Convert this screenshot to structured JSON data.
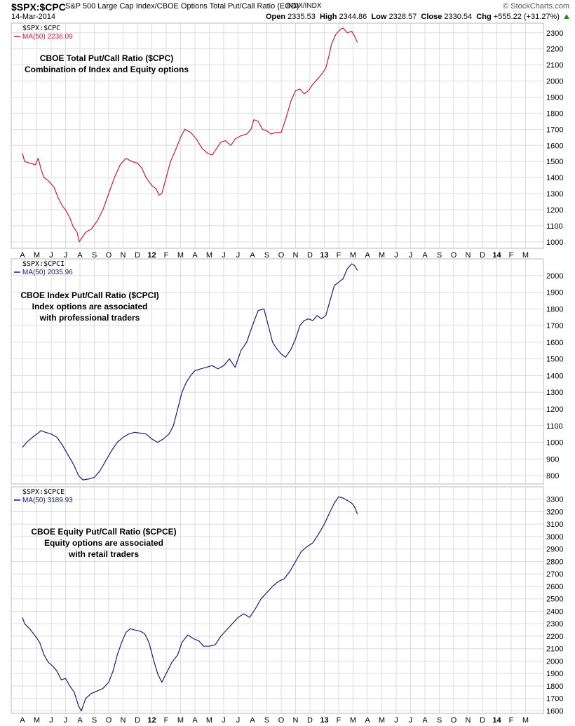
{
  "header": {
    "symbol": "$SPX:$CPC",
    "description": "S&P 500 Large Cap Index/CBOE Options Total Put/Call Ratio (EOD)",
    "exchange": "INDX/INDX",
    "brand": "© StockCharts.com",
    "date": "14-Mar-2014",
    "open_label": "Open",
    "open": "2335.53",
    "high_label": "High",
    "high": "2344.86",
    "low_label": "Low",
    "low": "2328.57",
    "close_label": "Close",
    "close": "2330.54",
    "chg_label": "Chg",
    "chg": "+555.22 (+31.27%)"
  },
  "colors": {
    "red": "#cc1a3a",
    "navy": "#1a1a80",
    "grid": "#dddddd",
    "frame": "#bbbbbb",
    "up": "#2a8a2a"
  },
  "x_axis": {
    "labels": [
      "A",
      "M",
      "J",
      "J",
      "A",
      "S",
      "O",
      "N",
      "D",
      "12",
      "F",
      "M",
      "A",
      "M",
      "J",
      "J",
      "A",
      "S",
      "O",
      "N",
      "D",
      "13",
      "F",
      "M",
      "A",
      "M",
      "J",
      "J",
      "A",
      "S",
      "O",
      "N",
      "D",
      "14",
      "F",
      "M"
    ],
    "year_labels": [
      "12",
      "13",
      "14"
    ]
  },
  "chart_data": [
    {
      "type": "line",
      "series_name": "$SPX:$CPC",
      "legend_ma": "MA(50) 2236.09",
      "color": "#cc1a3a",
      "note": [
        "CBOE Total Put/Call Ratio ($CPC)",
        "Combination of Index and Equity options"
      ],
      "ylim": [
        960,
        2360
      ],
      "yticks": [
        1000,
        1100,
        1200,
        1300,
        1400,
        1500,
        1600,
        1700,
        1800,
        1900,
        2000,
        2100,
        2200,
        2300
      ],
      "points": [
        [
          0,
          1550
        ],
        [
          0.15,
          1500
        ],
        [
          0.5,
          1490
        ],
        [
          0.9,
          1480
        ],
        [
          1.1,
          1520
        ],
        [
          1.3,
          1450
        ],
        [
          1.5,
          1400
        ],
        [
          1.8,
          1380
        ],
        [
          2.0,
          1360
        ],
        [
          2.2,
          1340
        ],
        [
          2.5,
          1270
        ],
        [
          2.8,
          1220
        ],
        [
          3.0,
          1200
        ],
        [
          3.3,
          1150
        ],
        [
          3.5,
          1100
        ],
        [
          3.8,
          1060
        ],
        [
          3.95,
          1000
        ],
        [
          4.1,
          1020
        ],
        [
          4.4,
          1060
        ],
        [
          4.8,
          1080
        ],
        [
          5.2,
          1130
        ],
        [
          5.6,
          1200
        ],
        [
          6.0,
          1300
        ],
        [
          6.4,
          1400
        ],
        [
          6.8,
          1480
        ],
        [
          7.2,
          1520
        ],
        [
          7.6,
          1500
        ],
        [
          8.0,
          1490
        ],
        [
          8.3,
          1460
        ],
        [
          8.6,
          1400
        ],
        [
          9.0,
          1350
        ],
        [
          9.3,
          1330
        ],
        [
          9.5,
          1290
        ],
        [
          9.7,
          1300
        ],
        [
          10.0,
          1400
        ],
        [
          10.3,
          1500
        ],
        [
          10.6,
          1560
        ],
        [
          11.0,
          1650
        ],
        [
          11.3,
          1700
        ],
        [
          11.7,
          1680
        ],
        [
          12.1,
          1640
        ],
        [
          12.5,
          1580
        ],
        [
          12.9,
          1550
        ],
        [
          13.2,
          1540
        ],
        [
          13.5,
          1580
        ],
        [
          13.8,
          1620
        ],
        [
          14.1,
          1630
        ],
        [
          14.5,
          1600
        ],
        [
          14.8,
          1640
        ],
        [
          15.2,
          1660
        ],
        [
          15.6,
          1670
        ],
        [
          15.9,
          1700
        ],
        [
          16.1,
          1760
        ],
        [
          16.4,
          1750
        ],
        [
          16.7,
          1700
        ],
        [
          17.0,
          1690
        ],
        [
          17.3,
          1670
        ],
        [
          17.6,
          1680
        ],
        [
          18.0,
          1680
        ],
        [
          18.3,
          1760
        ],
        [
          18.7,
          1880
        ],
        [
          19.0,
          1940
        ],
        [
          19.3,
          1950
        ],
        [
          19.6,
          1920
        ],
        [
          19.9,
          1940
        ],
        [
          20.2,
          1980
        ],
        [
          20.5,
          2010
        ],
        [
          20.8,
          2040
        ],
        [
          21.1,
          2080
        ],
        [
          21.3,
          2150
        ],
        [
          21.5,
          2230
        ],
        [
          21.8,
          2290
        ],
        [
          22.1,
          2320
        ],
        [
          22.3,
          2330
        ],
        [
          22.6,
          2300
        ],
        [
          22.9,
          2310
        ],
        [
          23.1,
          2280
        ],
        [
          23.3,
          2240
        ]
      ]
    },
    {
      "type": "line",
      "series_name": "$SPX:$CPCI",
      "legend_ma": "MA(50) 2035.96",
      "color": "#1a1a80",
      "note": [
        "CBOE Index Put/Call Ratio ($CPCI)",
        "Index options are associated",
        "with professional traders"
      ],
      "ylim": [
        750,
        2100
      ],
      "yticks": [
        800,
        900,
        1000,
        1100,
        1200,
        1300,
        1400,
        1500,
        1600,
        1700,
        1800,
        1900,
        2000
      ],
      "points": [
        [
          0,
          970
        ],
        [
          0.3,
          1000
        ],
        [
          0.7,
          1030
        ],
        [
          1.0,
          1050
        ],
        [
          1.3,
          1070
        ],
        [
          1.6,
          1060
        ],
        [
          2.0,
          1050
        ],
        [
          2.4,
          1030
        ],
        [
          2.8,
          980
        ],
        [
          3.2,
          920
        ],
        [
          3.6,
          860
        ],
        [
          3.9,
          800
        ],
        [
          4.2,
          775
        ],
        [
          4.6,
          780
        ],
        [
          5.0,
          790
        ],
        [
          5.4,
          830
        ],
        [
          5.8,
          890
        ],
        [
          6.2,
          950
        ],
        [
          6.6,
          1000
        ],
        [
          7.0,
          1030
        ],
        [
          7.4,
          1050
        ],
        [
          7.8,
          1060
        ],
        [
          8.2,
          1055
        ],
        [
          8.6,
          1050
        ],
        [
          9.0,
          1020
        ],
        [
          9.4,
          1000
        ],
        [
          9.8,
          1020
        ],
        [
          10.2,
          1050
        ],
        [
          10.5,
          1100
        ],
        [
          10.8,
          1200
        ],
        [
          11.1,
          1300
        ],
        [
          11.4,
          1360
        ],
        [
          11.7,
          1400
        ],
        [
          12.0,
          1430
        ],
        [
          12.4,
          1440
        ],
        [
          12.8,
          1450
        ],
        [
          13.2,
          1460
        ],
        [
          13.6,
          1440
        ],
        [
          14.0,
          1460
        ],
        [
          14.4,
          1500
        ],
        [
          14.8,
          1450
        ],
        [
          15.2,
          1550
        ],
        [
          15.6,
          1600
        ],
        [
          16.0,
          1700
        ],
        [
          16.4,
          1790
        ],
        [
          16.8,
          1800
        ],
        [
          17.1,
          1700
        ],
        [
          17.4,
          1600
        ],
        [
          17.7,
          1560
        ],
        [
          18.0,
          1530
        ],
        [
          18.3,
          1510
        ],
        [
          18.7,
          1560
        ],
        [
          19.0,
          1620
        ],
        [
          19.3,
          1700
        ],
        [
          19.6,
          1730
        ],
        [
          19.9,
          1740
        ],
        [
          20.2,
          1730
        ],
        [
          20.5,
          1760
        ],
        [
          20.8,
          1740
        ],
        [
          21.1,
          1760
        ],
        [
          21.4,
          1850
        ],
        [
          21.7,
          1940
        ],
        [
          22.0,
          1960
        ],
        [
          22.3,
          1980
        ],
        [
          22.6,
          2040
        ],
        [
          22.9,
          2070
        ],
        [
          23.1,
          2060
        ],
        [
          23.3,
          2030
        ]
      ]
    },
    {
      "type": "line",
      "series_name": "$SPX:$CPCE",
      "legend_ma": "MA(50) 3189.93",
      "color": "#1a1a80",
      "note": [
        "CBOE Equity Put/Call Ratio ($CPCE)",
        "Equity options are associated",
        "with retail traders"
      ],
      "ylim": [
        1580,
        3400
      ],
      "yticks": [
        1600,
        1700,
        1800,
        1900,
        2000,
        2100,
        2200,
        2300,
        2400,
        2500,
        2600,
        2700,
        2800,
        2900,
        3000,
        3100,
        3200,
        3300
      ],
      "points": [
        [
          0,
          2350
        ],
        [
          0.15,
          2300
        ],
        [
          0.5,
          2260
        ],
        [
          0.9,
          2200
        ],
        [
          1.2,
          2150
        ],
        [
          1.5,
          2050
        ],
        [
          1.8,
          1990
        ],
        [
          2.1,
          1960
        ],
        [
          2.4,
          1920
        ],
        [
          2.7,
          1850
        ],
        [
          3.0,
          1860
        ],
        [
          3.3,
          1800
        ],
        [
          3.6,
          1750
        ],
        [
          3.9,
          1640
        ],
        [
          4.1,
          1600
        ],
        [
          4.4,
          1700
        ],
        [
          4.8,
          1740
        ],
        [
          5.2,
          1760
        ],
        [
          5.6,
          1780
        ],
        [
          6.0,
          1830
        ],
        [
          6.3,
          1920
        ],
        [
          6.6,
          2050
        ],
        [
          6.9,
          2150
        ],
        [
          7.2,
          2230
        ],
        [
          7.5,
          2260
        ],
        [
          7.8,
          2250
        ],
        [
          8.2,
          2240
        ],
        [
          8.5,
          2220
        ],
        [
          8.8,
          2150
        ],
        [
          9.1,
          2020
        ],
        [
          9.4,
          1900
        ],
        [
          9.7,
          1830
        ],
        [
          10.0,
          1900
        ],
        [
          10.4,
          1990
        ],
        [
          10.8,
          2050
        ],
        [
          11.1,
          2150
        ],
        [
          11.5,
          2210
        ],
        [
          11.9,
          2180
        ],
        [
          12.3,
          2160
        ],
        [
          12.6,
          2120
        ],
        [
          13.0,
          2120
        ],
        [
          13.4,
          2130
        ],
        [
          13.8,
          2200
        ],
        [
          14.2,
          2250
        ],
        [
          14.6,
          2300
        ],
        [
          15.0,
          2350
        ],
        [
          15.4,
          2380
        ],
        [
          15.8,
          2350
        ],
        [
          16.2,
          2420
        ],
        [
          16.6,
          2500
        ],
        [
          17.0,
          2550
        ],
        [
          17.4,
          2600
        ],
        [
          17.8,
          2640
        ],
        [
          18.2,
          2660
        ],
        [
          18.6,
          2720
        ],
        [
          19.0,
          2800
        ],
        [
          19.4,
          2880
        ],
        [
          19.8,
          2920
        ],
        [
          20.2,
          2950
        ],
        [
          20.6,
          3020
        ],
        [
          21.0,
          3100
        ],
        [
          21.4,
          3200
        ],
        [
          21.7,
          3270
        ],
        [
          22.0,
          3320
        ],
        [
          22.3,
          3310
        ],
        [
          22.6,
          3290
        ],
        [
          22.9,
          3270
        ],
        [
          23.1,
          3240
        ],
        [
          23.3,
          3180
        ]
      ]
    }
  ]
}
